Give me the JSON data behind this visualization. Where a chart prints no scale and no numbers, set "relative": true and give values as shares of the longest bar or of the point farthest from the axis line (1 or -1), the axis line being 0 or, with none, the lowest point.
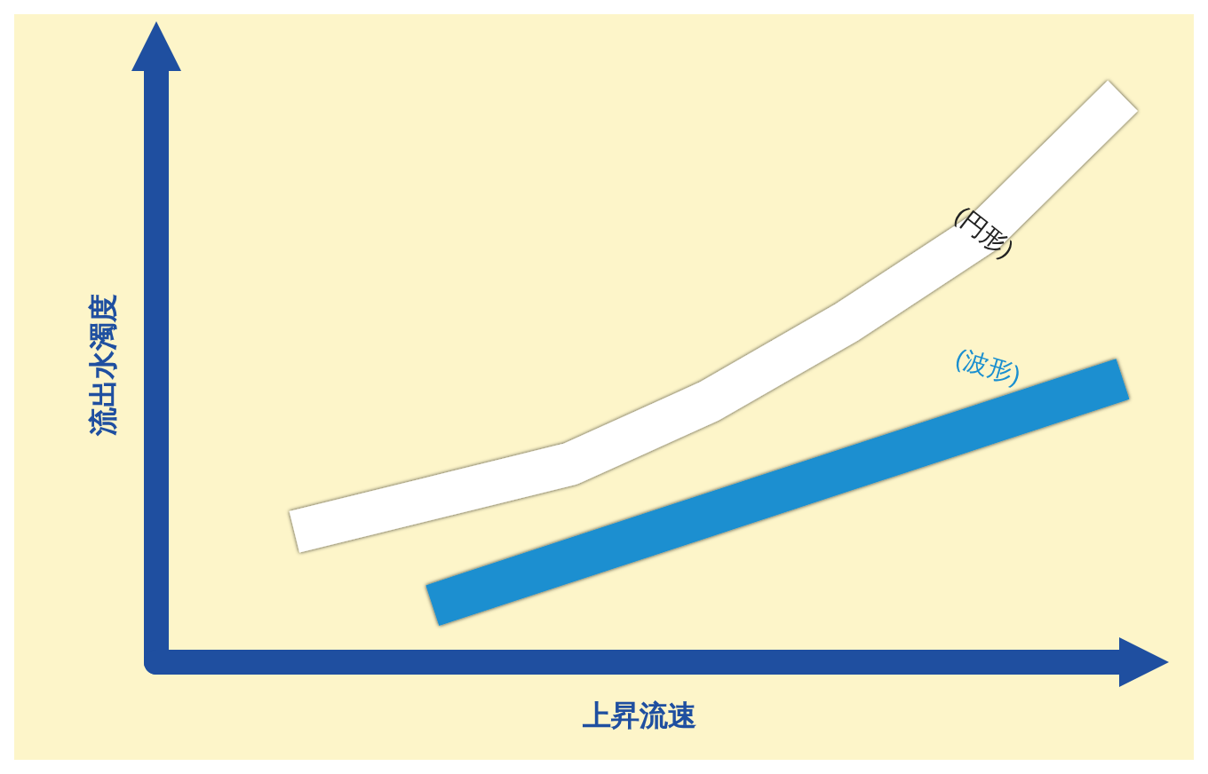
{
  "chart_data": {
    "type": "line",
    "relative": true,
    "xlabel": "上昇流速",
    "ylabel": "流出水濁度",
    "categories": [
      null,
      null,
      null,
      null,
      null,
      null,
      null,
      null
    ],
    "series": [
      {
        "name": "(円形)",
        "color": "#ffffff",
        "values": [
          null,
          0.23,
          0.29,
          0.35,
          0.46,
          0.6,
          0.76,
          1.0
        ]
      },
      {
        "name": "(波形)",
        "color": "#1a8fd0",
        "values": [
          null,
          null,
          0.1,
          0.18,
          0.26,
          0.34,
          0.42,
          0.5
        ]
      }
    ],
    "grid": false,
    "legend": false,
    "marker": "none",
    "line_style": "solid"
  }
}
